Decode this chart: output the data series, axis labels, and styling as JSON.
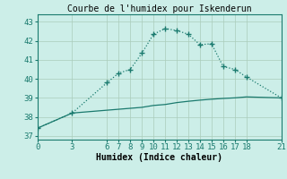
{
  "title": "Courbe de l'humidex pour Iskenderun",
  "xlabel": "Humidex (Indice chaleur)",
  "bg_color": "#cceee8",
  "line_color": "#1a7a6e",
  "grid_color": "#aaccbb",
  "x_ticks": [
    0,
    3,
    6,
    7,
    8,
    9,
    10,
    11,
    12,
    13,
    14,
    15,
    16,
    17,
    18,
    21
  ],
  "y_ticks": [
    37,
    38,
    39,
    40,
    41,
    42,
    43
  ],
  "xlim": [
    0,
    21
  ],
  "ylim": [
    36.8,
    43.4
  ],
  "line1_x": [
    0,
    3,
    6,
    7,
    8,
    9,
    10,
    11,
    12,
    13,
    14,
    15,
    16,
    17,
    18,
    21
  ],
  "line1_y": [
    37.4,
    38.2,
    39.8,
    40.3,
    40.5,
    41.35,
    42.35,
    42.65,
    42.55,
    42.35,
    41.8,
    41.85,
    40.65,
    40.5,
    40.1,
    39.0
  ],
  "line2_x": [
    0,
    3,
    6,
    7,
    8,
    9,
    10,
    11,
    12,
    13,
    14,
    15,
    16,
    17,
    18,
    21
  ],
  "line2_y": [
    37.4,
    38.2,
    38.35,
    38.4,
    38.45,
    38.5,
    38.6,
    38.65,
    38.75,
    38.82,
    38.88,
    38.93,
    38.97,
    39.0,
    39.05,
    39.0
  ],
  "title_fontsize": 7,
  "axis_fontsize": 7,
  "tick_fontsize": 6.5
}
